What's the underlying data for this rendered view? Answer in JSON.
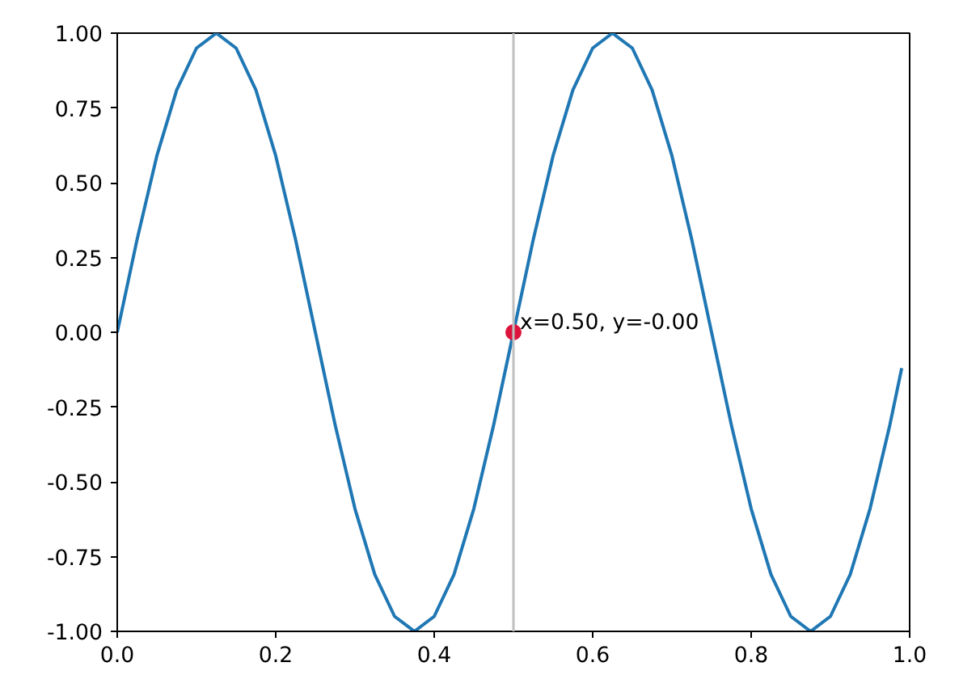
{
  "chart_data": {
    "type": "line",
    "x": [
      0,
      0.025,
      0.05,
      0.075,
      0.1,
      0.125,
      0.15,
      0.175,
      0.2,
      0.225,
      0.25,
      0.275,
      0.3,
      0.325,
      0.35,
      0.375,
      0.4,
      0.425,
      0.45,
      0.475,
      0.5,
      0.525,
      0.55,
      0.575,
      0.6,
      0.625,
      0.65,
      0.675,
      0.7,
      0.725,
      0.75,
      0.775,
      0.8,
      0.825,
      0.85,
      0.875,
      0.9,
      0.925,
      0.95,
      0.975,
      0.99
    ],
    "series": [
      {
        "color": "#1f77b4",
        "values": [
          0,
          0.31,
          0.59,
          0.81,
          0.95,
          1.0,
          0.95,
          0.81,
          0.59,
          0.31,
          0,
          -0.31,
          -0.59,
          -0.81,
          -0.95,
          -1.0,
          -0.95,
          -0.81,
          -0.59,
          -0.31,
          0,
          0.31,
          0.59,
          0.81,
          0.95,
          1.0,
          0.95,
          0.81,
          0.59,
          0.31,
          0,
          -0.31,
          -0.59,
          -0.81,
          -0.95,
          -1.0,
          -0.95,
          -0.81,
          -0.59,
          -0.31,
          -0.12
        ]
      },
      {
        "type": "scatter",
        "color": "#dc143c",
        "x": [
          0.5
        ],
        "values": [
          0
        ]
      }
    ],
    "ref_lines": [
      {
        "axis": "x",
        "value": 0.5,
        "color": "#c0c0c0"
      }
    ],
    "annotations": [
      {
        "text": "x=0.50, y=-0.00",
        "x": 0.5,
        "y": 0
      }
    ],
    "xlim": [
      0,
      1
    ],
    "ylim": [
      -1,
      1
    ],
    "xticks": [
      {
        "value": 0,
        "label": "0.0"
      },
      {
        "value": 0.2,
        "label": "0.2"
      },
      {
        "value": 0.4,
        "label": "0.4"
      },
      {
        "value": 0.6,
        "label": "0.6"
      },
      {
        "value": 0.8,
        "label": "0.8"
      },
      {
        "value": 1,
        "label": "1.0"
      }
    ],
    "yticks": [
      {
        "value": -1,
        "label": "-1.00"
      },
      {
        "value": -0.75,
        "label": "-0.75"
      },
      {
        "value": -0.5,
        "label": "-0.50"
      },
      {
        "value": -0.25,
        "label": "-0.25"
      },
      {
        "value": 0,
        "label": "0.00"
      },
      {
        "value": 0.25,
        "label": "0.25"
      },
      {
        "value": 0.5,
        "label": "0.50"
      },
      {
        "value": 0.75,
        "label": "0.75"
      },
      {
        "value": 1,
        "label": "1.00"
      }
    ],
    "grid": false
  }
}
